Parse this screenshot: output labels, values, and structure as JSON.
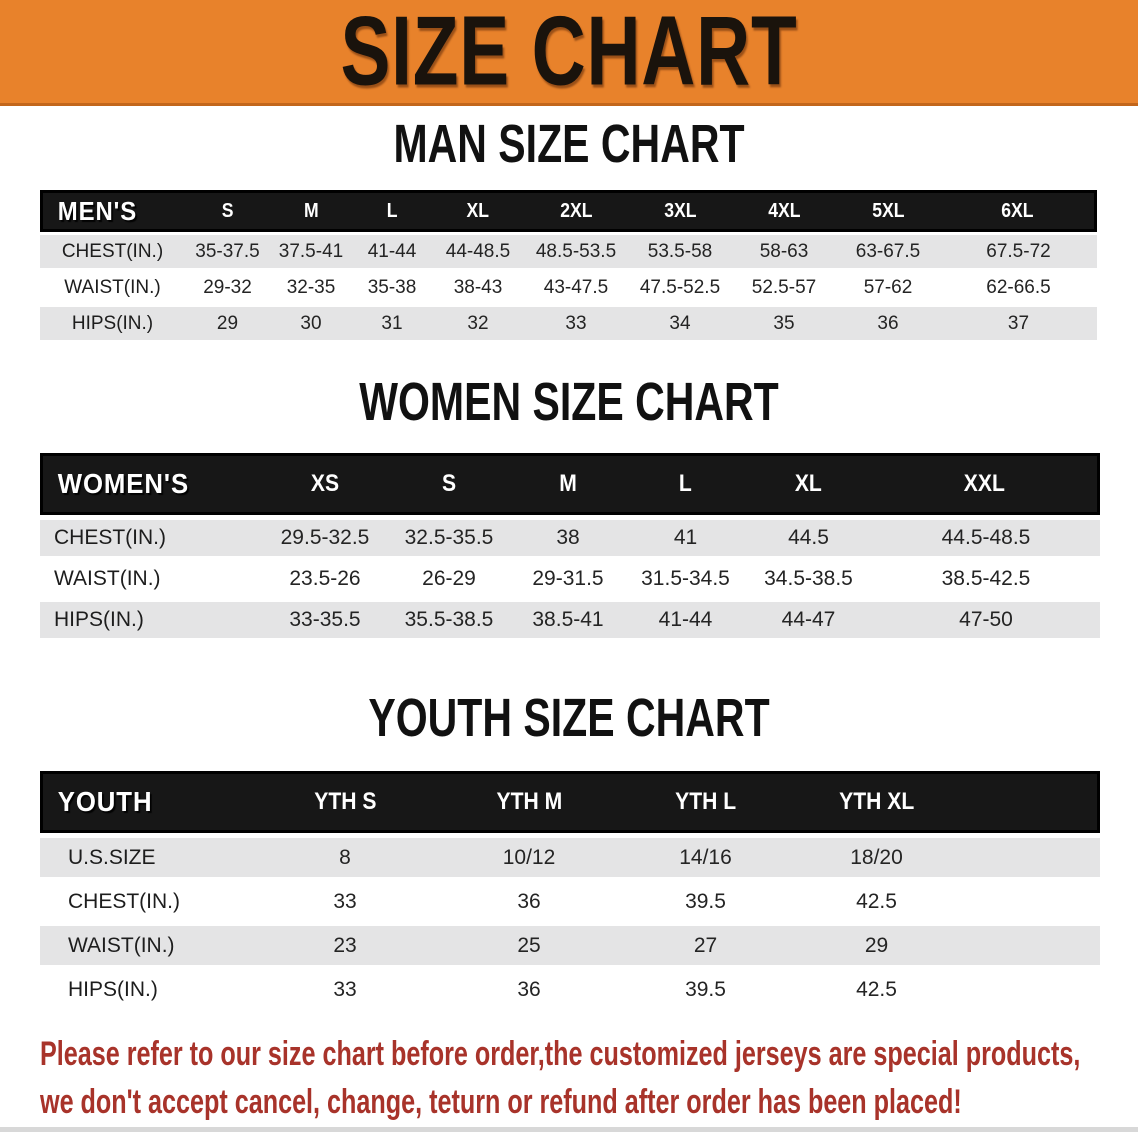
{
  "banner": {
    "title": "SIZE CHART",
    "bg_color": "#E8822B",
    "edge_color": "#C2661B",
    "title_color": "#1A130C"
  },
  "headings": {
    "men": "MAN SIZE CHART",
    "women": "WOMEN SIZE CHART",
    "youth": "YOUTH SIZE CHART"
  },
  "men": {
    "table_title": "MEN'S",
    "sizes": [
      "S",
      "M",
      "L",
      "XL",
      "2XL",
      "3XL",
      "4XL",
      "5XL",
      "6XL"
    ],
    "rows": [
      {
        "label": "CHEST(IN.)",
        "values": [
          "35-37.5",
          "37.5-41",
          "41-44",
          "44-48.5",
          "48.5-53.5",
          "53.5-58",
          "58-63",
          "63-67.5",
          "67.5-72"
        ]
      },
      {
        "label": "WAIST(IN.)",
        "values": [
          "29-32",
          "32-35",
          "35-38",
          "38-43",
          "43-47.5",
          "47.5-52.5",
          "52.5-57",
          "57-62",
          "62-66.5"
        ]
      },
      {
        "label": "HIPS(IN.)",
        "values": [
          "29",
          "30",
          "31",
          "32",
          "33",
          "34",
          "35",
          "36",
          "37"
        ]
      }
    ]
  },
  "women": {
    "table_title": "WOMEN'S",
    "sizes": [
      "XS",
      "S",
      "M",
      "L",
      "XL",
      "XXL"
    ],
    "rows": [
      {
        "label": "CHEST(IN.)",
        "values": [
          "29.5-32.5",
          "32.5-35.5",
          "38",
          "41",
          "44.5",
          "44.5-48.5"
        ]
      },
      {
        "label": "WAIST(IN.)",
        "values": [
          "23.5-26",
          "26-29",
          "29-31.5",
          "31.5-34.5",
          "34.5-38.5",
          "38.5-42.5"
        ]
      },
      {
        "label": "HIPS(IN.)",
        "values": [
          "33-35.5",
          "35.5-38.5",
          "38.5-41",
          "41-44",
          "44-47",
          "47-50"
        ]
      }
    ]
  },
  "youth": {
    "table_title": "YOUTH",
    "sizes": [
      "YTH S",
      "YTH M",
      "YTH L",
      "YTH XL"
    ],
    "rows": [
      {
        "label": "U.S.SIZE",
        "values": [
          "8",
          "10/12",
          "14/16",
          "18/20"
        ]
      },
      {
        "label": "CHEST(IN.)",
        "values": [
          "33",
          "36",
          "39.5",
          "42.5"
        ]
      },
      {
        "label": "WAIST(IN.)",
        "values": [
          "23",
          "25",
          "27",
          "29"
        ]
      },
      {
        "label": "HIPS(IN.)",
        "values": [
          "33",
          "36",
          "39.5",
          "42.5"
        ]
      }
    ]
  },
  "disclaimer": {
    "line1": "Please refer to our size chart before order,the customized jerseys are special products,",
    "line2": "we don't accept cancel, change, teturn or refund after order has been placed!",
    "color": "#A8332A"
  },
  "colors": {
    "header_band": "#171717",
    "row_gray": "#E4E4E5",
    "row_white": "#FFFFFF"
  }
}
